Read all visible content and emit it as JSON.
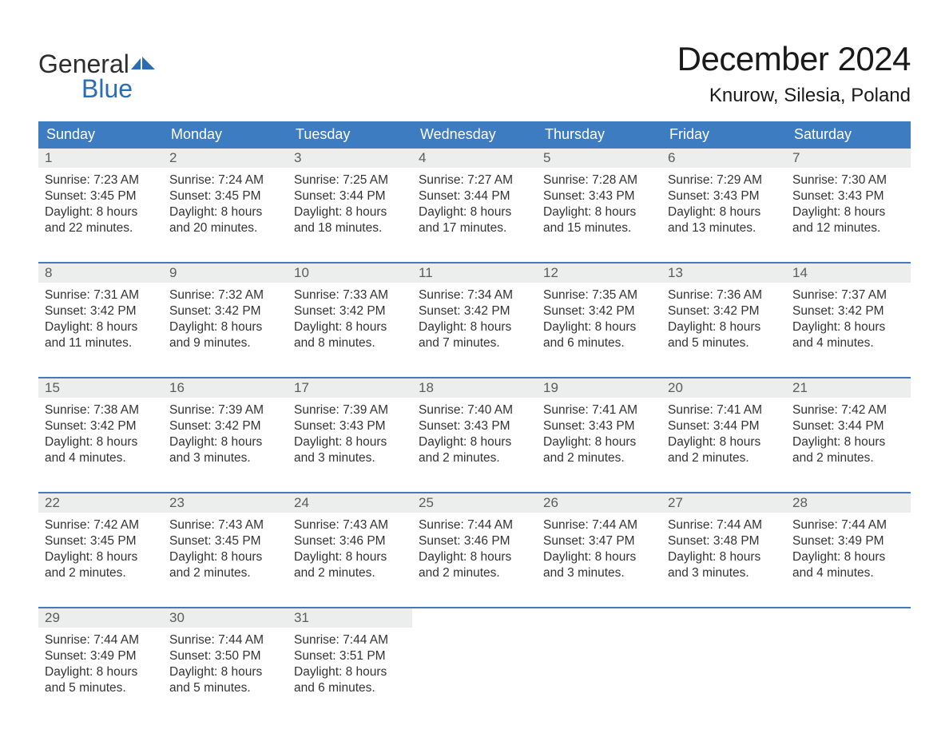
{
  "brand": {
    "word1": "General",
    "word2": "Blue"
  },
  "title": "December 2024",
  "location": "Knurow, Silesia, Poland",
  "colors": {
    "header_bg": "#3d7cc0",
    "header_text": "#ffffff",
    "daynum_bg": "#eceded",
    "daynum_text": "#5c5c5c",
    "body_text": "#333333",
    "logo_blue": "#2a6db3",
    "row_border": "#3d7cc0",
    "page_bg": "#ffffff"
  },
  "typography": {
    "title_fontsize": 42,
    "location_fontsize": 24,
    "dayheader_fontsize": 18,
    "cell_fontsize": 15.5,
    "logo_fontsize": 32
  },
  "type": "calendar-table",
  "day_names": [
    "Sunday",
    "Monday",
    "Tuesday",
    "Wednesday",
    "Thursday",
    "Friday",
    "Saturday"
  ],
  "weeks": [
    [
      {
        "n": "1",
        "sr": "Sunrise: 7:23 AM",
        "ss": "Sunset: 3:45 PM",
        "d1": "Daylight: 8 hours",
        "d2": "and 22 minutes."
      },
      {
        "n": "2",
        "sr": "Sunrise: 7:24 AM",
        "ss": "Sunset: 3:45 PM",
        "d1": "Daylight: 8 hours",
        "d2": "and 20 minutes."
      },
      {
        "n": "3",
        "sr": "Sunrise: 7:25 AM",
        "ss": "Sunset: 3:44 PM",
        "d1": "Daylight: 8 hours",
        "d2": "and 18 minutes."
      },
      {
        "n": "4",
        "sr": "Sunrise: 7:27 AM",
        "ss": "Sunset: 3:44 PM",
        "d1": "Daylight: 8 hours",
        "d2": "and 17 minutes."
      },
      {
        "n": "5",
        "sr": "Sunrise: 7:28 AM",
        "ss": "Sunset: 3:43 PM",
        "d1": "Daylight: 8 hours",
        "d2": "and 15 minutes."
      },
      {
        "n": "6",
        "sr": "Sunrise: 7:29 AM",
        "ss": "Sunset: 3:43 PM",
        "d1": "Daylight: 8 hours",
        "d2": "and 13 minutes."
      },
      {
        "n": "7",
        "sr": "Sunrise: 7:30 AM",
        "ss": "Sunset: 3:43 PM",
        "d1": "Daylight: 8 hours",
        "d2": "and 12 minutes."
      }
    ],
    [
      {
        "n": "8",
        "sr": "Sunrise: 7:31 AM",
        "ss": "Sunset: 3:42 PM",
        "d1": "Daylight: 8 hours",
        "d2": "and 11 minutes."
      },
      {
        "n": "9",
        "sr": "Sunrise: 7:32 AM",
        "ss": "Sunset: 3:42 PM",
        "d1": "Daylight: 8 hours",
        "d2": "and 9 minutes."
      },
      {
        "n": "10",
        "sr": "Sunrise: 7:33 AM",
        "ss": "Sunset: 3:42 PM",
        "d1": "Daylight: 8 hours",
        "d2": "and 8 minutes."
      },
      {
        "n": "11",
        "sr": "Sunrise: 7:34 AM",
        "ss": "Sunset: 3:42 PM",
        "d1": "Daylight: 8 hours",
        "d2": "and 7 minutes."
      },
      {
        "n": "12",
        "sr": "Sunrise: 7:35 AM",
        "ss": "Sunset: 3:42 PM",
        "d1": "Daylight: 8 hours",
        "d2": "and 6 minutes."
      },
      {
        "n": "13",
        "sr": "Sunrise: 7:36 AM",
        "ss": "Sunset: 3:42 PM",
        "d1": "Daylight: 8 hours",
        "d2": "and 5 minutes."
      },
      {
        "n": "14",
        "sr": "Sunrise: 7:37 AM",
        "ss": "Sunset: 3:42 PM",
        "d1": "Daylight: 8 hours",
        "d2": "and 4 minutes."
      }
    ],
    [
      {
        "n": "15",
        "sr": "Sunrise: 7:38 AM",
        "ss": "Sunset: 3:42 PM",
        "d1": "Daylight: 8 hours",
        "d2": "and 4 minutes."
      },
      {
        "n": "16",
        "sr": "Sunrise: 7:39 AM",
        "ss": "Sunset: 3:42 PM",
        "d1": "Daylight: 8 hours",
        "d2": "and 3 minutes."
      },
      {
        "n": "17",
        "sr": "Sunrise: 7:39 AM",
        "ss": "Sunset: 3:43 PM",
        "d1": "Daylight: 8 hours",
        "d2": "and 3 minutes."
      },
      {
        "n": "18",
        "sr": "Sunrise: 7:40 AM",
        "ss": "Sunset: 3:43 PM",
        "d1": "Daylight: 8 hours",
        "d2": "and 2 minutes."
      },
      {
        "n": "19",
        "sr": "Sunrise: 7:41 AM",
        "ss": "Sunset: 3:43 PM",
        "d1": "Daylight: 8 hours",
        "d2": "and 2 minutes."
      },
      {
        "n": "20",
        "sr": "Sunrise: 7:41 AM",
        "ss": "Sunset: 3:44 PM",
        "d1": "Daylight: 8 hours",
        "d2": "and 2 minutes."
      },
      {
        "n": "21",
        "sr": "Sunrise: 7:42 AM",
        "ss": "Sunset: 3:44 PM",
        "d1": "Daylight: 8 hours",
        "d2": "and 2 minutes."
      }
    ],
    [
      {
        "n": "22",
        "sr": "Sunrise: 7:42 AM",
        "ss": "Sunset: 3:45 PM",
        "d1": "Daylight: 8 hours",
        "d2": "and 2 minutes."
      },
      {
        "n": "23",
        "sr": "Sunrise: 7:43 AM",
        "ss": "Sunset: 3:45 PM",
        "d1": "Daylight: 8 hours",
        "d2": "and 2 minutes."
      },
      {
        "n": "24",
        "sr": "Sunrise: 7:43 AM",
        "ss": "Sunset: 3:46 PM",
        "d1": "Daylight: 8 hours",
        "d2": "and 2 minutes."
      },
      {
        "n": "25",
        "sr": "Sunrise: 7:44 AM",
        "ss": "Sunset: 3:46 PM",
        "d1": "Daylight: 8 hours",
        "d2": "and 2 minutes."
      },
      {
        "n": "26",
        "sr": "Sunrise: 7:44 AM",
        "ss": "Sunset: 3:47 PM",
        "d1": "Daylight: 8 hours",
        "d2": "and 3 minutes."
      },
      {
        "n": "27",
        "sr": "Sunrise: 7:44 AM",
        "ss": "Sunset: 3:48 PM",
        "d1": "Daylight: 8 hours",
        "d2": "and 3 minutes."
      },
      {
        "n": "28",
        "sr": "Sunrise: 7:44 AM",
        "ss": "Sunset: 3:49 PM",
        "d1": "Daylight: 8 hours",
        "d2": "and 4 minutes."
      }
    ],
    [
      {
        "n": "29",
        "sr": "Sunrise: 7:44 AM",
        "ss": "Sunset: 3:49 PM",
        "d1": "Daylight: 8 hours",
        "d2": "and 5 minutes."
      },
      {
        "n": "30",
        "sr": "Sunrise: 7:44 AM",
        "ss": "Sunset: 3:50 PM",
        "d1": "Daylight: 8 hours",
        "d2": "and 5 minutes."
      },
      {
        "n": "31",
        "sr": "Sunrise: 7:44 AM",
        "ss": "Sunset: 3:51 PM",
        "d1": "Daylight: 8 hours",
        "d2": "and 6 minutes."
      },
      null,
      null,
      null,
      null
    ]
  ]
}
